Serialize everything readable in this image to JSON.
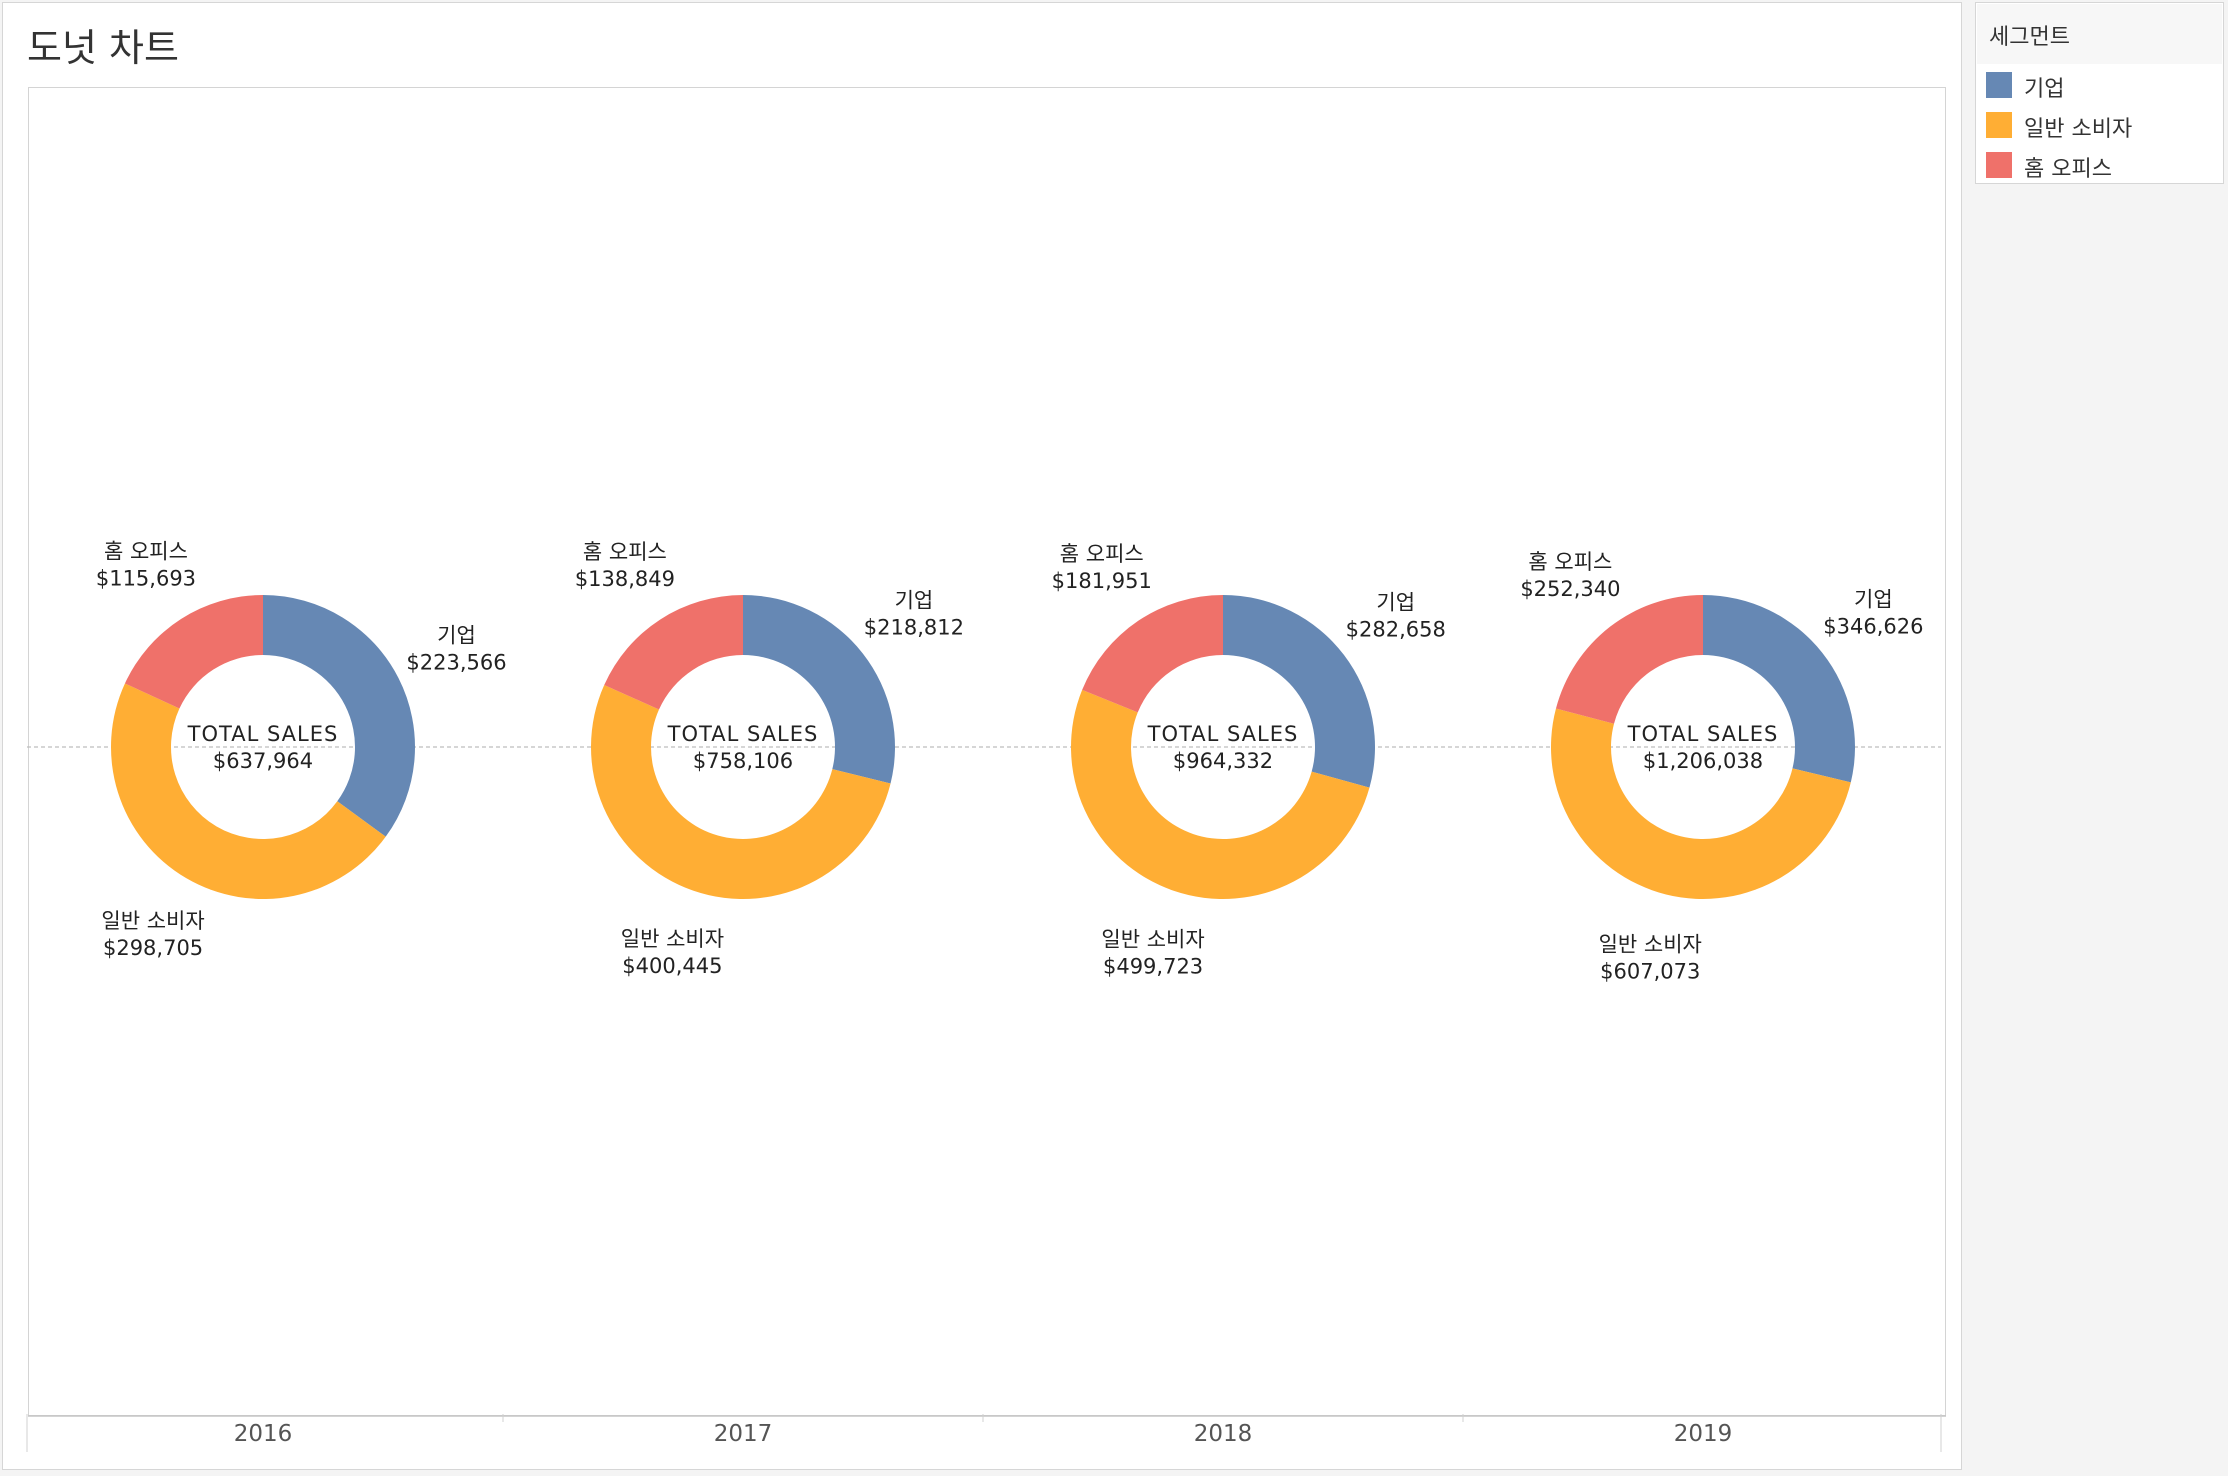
{
  "title": "도넛 차트",
  "legend": {
    "title": "세그먼트",
    "items": [
      {
        "label": "기업",
        "color": "#6688B4"
      },
      {
        "label": "일반 소비자",
        "color": "#FFAE34"
      },
      {
        "label": "홈 오피스",
        "color": "#EF716A"
      }
    ]
  },
  "chart_data": {
    "type": "pie",
    "variant": "donut",
    "categories": [
      "2016",
      "2017",
      "2018",
      "2019"
    ],
    "segments": [
      "기업",
      "일반 소비자",
      "홈 오피스"
    ],
    "center_label": "TOTAL SALES",
    "series": [
      {
        "name": "기업",
        "color": "#6688B4",
        "values": [
          223566,
          218812,
          282658,
          346626
        ]
      },
      {
        "name": "일반 소비자",
        "color": "#FFAE34",
        "values": [
          298705,
          400445,
          499723,
          607073
        ]
      },
      {
        "name": "홈 오피스",
        "color": "#EF716A",
        "values": [
          115693,
          138849,
          181951,
          252340
        ]
      }
    ],
    "value_labels": {
      "기업": [
        "$223,566",
        "$218,812",
        "$282,658",
        "$346,626"
      ],
      "일반 소비자": [
        "$298,705",
        "$400,445",
        "$499,723",
        "$607,073"
      ],
      "홈 오피스": [
        "$115,693",
        "$138,849",
        "$181,951",
        "$252,340"
      ]
    },
    "totals": [
      "$637,964",
      "$758,106",
      "$964,332",
      "$1,206,038"
    ]
  }
}
